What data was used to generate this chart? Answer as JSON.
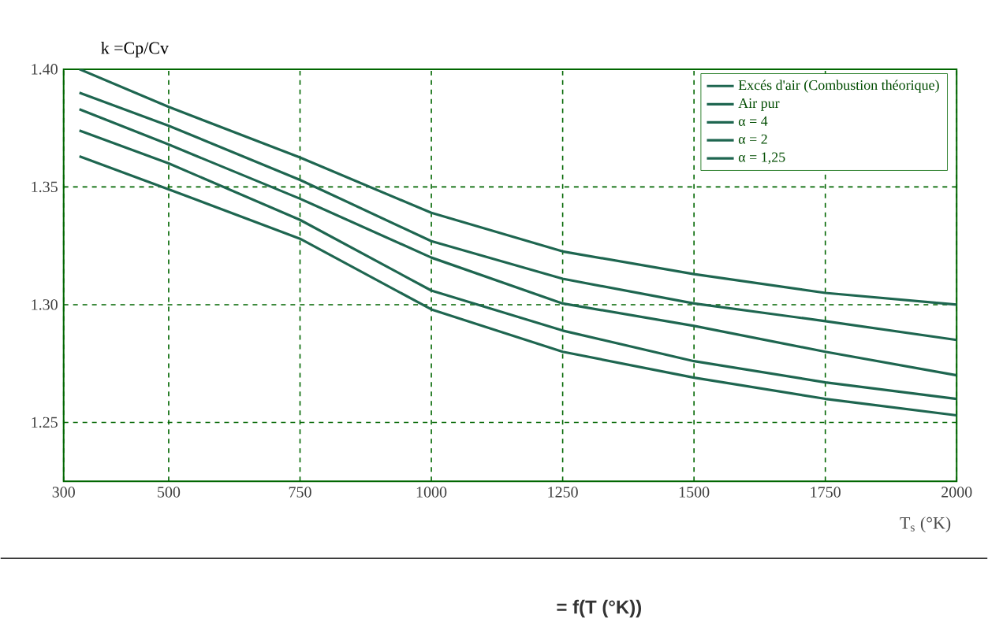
{
  "chart_data": {
    "type": "line",
    "ylabel": "k =Cp/Cv",
    "xlabel": "T$_{s}$ (°K)",
    "annotations": [
      "= f(T (°K))"
    ],
    "x": [
      330,
      500,
      750,
      1000,
      1250,
      1500,
      1750,
      2000
    ],
    "xlim": [
      300,
      2000
    ],
    "ylim": [
      1.225,
      1.4
    ],
    "xticks": [
      300,
      500,
      750,
      1000,
      1250,
      1500,
      1750,
      2000
    ],
    "yticks": [
      {
        "value": 1.25,
        "label": "1.25"
      },
      {
        "value": 1.3,
        "label": "1.30"
      },
      {
        "value": 1.35,
        "label": "1.35"
      },
      {
        "value": 1.4,
        "label": "1.40"
      }
    ],
    "grid": true,
    "legend": "top right",
    "marker": "none",
    "line_style": "solid",
    "series": [
      {
        "name": "Excés d'air (Combustion théorique)",
        "color": "#1e6650",
        "values": [
          1.363,
          1.349,
          1.328,
          1.298,
          1.28,
          1.269,
          1.26,
          1.253
        ]
      },
      {
        "name": "Air pur",
        "color": "#1e6650",
        "values": [
          1.4,
          1.384,
          1.3625,
          1.339,
          1.3226,
          1.313,
          1.305,
          1.3
        ]
      },
      {
        "name": "α = 4",
        "color": "#1e6650",
        "values": [
          1.39,
          1.376,
          1.353,
          1.327,
          1.311,
          1.3005,
          1.293,
          1.285
        ]
      },
      {
        "name": "α = 2",
        "color": "#1e6650",
        "values": [
          1.383,
          1.368,
          1.345,
          1.32,
          1.3005,
          1.291,
          1.28,
          1.27
        ]
      },
      {
        "name": "α = 1,25",
        "color": "#1e6650",
        "values": [
          1.374,
          1.36,
          1.336,
          1.306,
          1.289,
          1.276,
          1.267,
          1.26
        ]
      }
    ]
  }
}
